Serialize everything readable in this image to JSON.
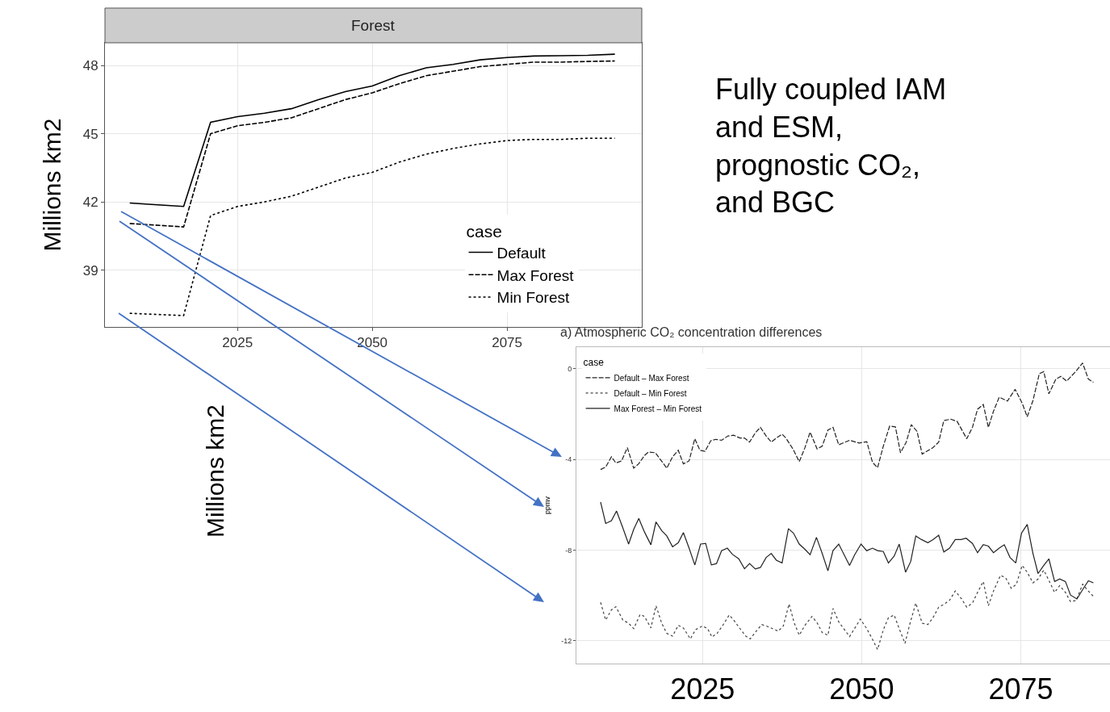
{
  "chart_data": [
    {
      "type": "line",
      "title": "Forest",
      "ylabel": "Millions km2",
      "legend_title": "case",
      "legend": "bottom right",
      "grid": true,
      "xlim": [
        2000.4,
        2100
      ],
      "xticks": [
        2025,
        2050,
        2075
      ],
      "ylim": [
        36.5,
        49
      ],
      "yticks": [
        39,
        42,
        45,
        48
      ],
      "x": [
        2005,
        2015,
        2020,
        2025,
        2030,
        2035,
        2040,
        2045,
        2050,
        2055,
        2060,
        2065,
        2070,
        2075,
        2080,
        2085,
        2090,
        2095
      ],
      "series": [
        {
          "name": "Default",
          "color": "#000000",
          "line_style": "solid",
          "values": [
            41.95,
            41.8,
            45.5,
            45.75,
            45.9,
            46.1,
            46.5,
            46.85,
            47.1,
            47.55,
            47.9,
            48.05,
            48.25,
            48.35,
            48.42,
            48.43,
            48.45,
            48.5
          ]
        },
        {
          "name": "Max Forest",
          "color": "#000000",
          "line_style": "dashed",
          "values": [
            41.05,
            40.9,
            45.0,
            45.35,
            45.5,
            45.7,
            46.1,
            46.5,
            46.8,
            47.2,
            47.55,
            47.75,
            47.95,
            48.05,
            48.15,
            48.15,
            48.18,
            48.2
          ]
        },
        {
          "name": "Min Forest",
          "color": "#000000",
          "line_style": "dotted",
          "values": [
            37.1,
            37.0,
            41.4,
            41.8,
            42.0,
            42.25,
            42.65,
            43.05,
            43.3,
            43.75,
            44.1,
            44.35,
            44.55,
            44.7,
            44.75,
            44.75,
            44.8,
            44.8
          ]
        }
      ],
      "annotations": [
        "Fully coupled IAM and ESM, prognostic CO₂, and BGC"
      ]
    },
    {
      "type": "line",
      "title": "a) Atmospheric CO₂ concentration differences",
      "ylabel": "ppmv",
      "legend_title": "case",
      "legend": "top left",
      "grid": true,
      "xlim": [
        2005.2,
        2089
      ],
      "xticks": [
        2025,
        2050,
        2075
      ],
      "ylim": [
        -13.0,
        0.96
      ],
      "yticks": [
        0,
        -4,
        -8,
        -12
      ],
      "series": [
        {
          "name": "Default – Max Forest",
          "color": "#222222",
          "line_style": "dashed",
          "x": [
            2009.0,
            2009.8,
            2010.7,
            2011.4,
            2012.3,
            2013.2,
            2014.2,
            2015.0,
            2015.9,
            2016.5,
            2017.6,
            2018.4,
            2019.4,
            2020.3,
            2021.2,
            2022.0,
            2022.9,
            2023.8,
            2024.6,
            2025.4,
            2026.3,
            2027.1,
            2028.0,
            2029.0,
            2029.9,
            2030.9,
            2031.6,
            2032.4,
            2033.3,
            2034.1,
            2035.0,
            2035.8,
            2036.6,
            2037.5,
            2038.1,
            2039.2,
            2040.2,
            2041.1,
            2041.9,
            2043.0,
            2043.8,
            2044.7,
            2045.5,
            2046.4,
            2048.1,
            2049.6,
            2050.8,
            2051.7,
            2052.5,
            2053.4,
            2054.4,
            2055.3,
            2056.1,
            2057.0,
            2057.8,
            2058.7,
            2059.5,
            2061.2,
            2062.1,
            2062.9,
            2064.0,
            2065.0,
            2066.5,
            2067.4,
            2068.2,
            2069.1,
            2069.9,
            2070.7,
            2071.6,
            2072.9,
            2074.1,
            2075.2,
            2076.0,
            2076.9,
            2077.9,
            2078.6,
            2079.4,
            2080.5,
            2081.3,
            2082.2,
            2083.7,
            2084.7,
            2085.6,
            2086.4
          ],
          "values": [
            -4.44,
            -4.33,
            -3.88,
            -4.15,
            -4.06,
            -3.47,
            -4.38,
            -4.18,
            -3.82,
            -3.67,
            -3.7,
            -4.0,
            -4.38,
            -3.88,
            -3.59,
            -4.19,
            -4.06,
            -3.08,
            -3.59,
            -3.64,
            -3.17,
            -3.11,
            -3.15,
            -2.96,
            -2.93,
            -3.05,
            -3.05,
            -3.23,
            -2.82,
            -2.58,
            -2.96,
            -3.23,
            -3.05,
            -2.88,
            -3.05,
            -3.53,
            -4.09,
            -3.47,
            -2.79,
            -3.53,
            -3.41,
            -2.7,
            -2.58,
            -3.35,
            -3.15,
            -3.27,
            -3.21,
            -4.12,
            -4.36,
            -3.41,
            -2.52,
            -2.56,
            -3.7,
            -3.23,
            -2.46,
            -2.76,
            -3.76,
            -3.47,
            -3.23,
            -2.28,
            -2.22,
            -2.32,
            -3.08,
            -2.58,
            -1.78,
            -1.57,
            -2.58,
            -1.87,
            -1.25,
            -1.42,
            -0.9,
            -1.51,
            -2.11,
            -1.4,
            -0.21,
            -0.12,
            -1.1,
            -0.45,
            -0.33,
            -0.54,
            -0.09,
            0.26,
            -0.45,
            -0.59
          ]
        },
        {
          "name": "Default – Min Forest",
          "color": "#444444",
          "line_style": "dotted",
          "x": [
            2009.0,
            2009.8,
            2010.7,
            2011.4,
            2012.5,
            2013.4,
            2014.2,
            2015.2,
            2015.9,
            2016.9,
            2017.7,
            2018.6,
            2019.4,
            2020.3,
            2021.2,
            2022.0,
            2023.1,
            2023.9,
            2025.0,
            2025.8,
            2026.5,
            2027.3,
            2028.2,
            2029.2,
            2029.9,
            2030.9,
            2031.8,
            2032.5,
            2033.5,
            2034.3,
            2035.2,
            2036.0,
            2036.9,
            2037.7,
            2038.6,
            2039.4,
            2040.2,
            2041.1,
            2042.2,
            2043.0,
            2043.8,
            2044.7,
            2045.5,
            2046.4,
            2048.1,
            2049.8,
            2050.8,
            2051.7,
            2052.5,
            2053.4,
            2054.2,
            2055.1,
            2055.9,
            2056.8,
            2057.6,
            2058.5,
            2059.5,
            2060.4,
            2061.2,
            2062.1,
            2062.9,
            2063.8,
            2064.7,
            2065.7,
            2066.5,
            2067.4,
            2068.2,
            2069.1,
            2069.9,
            2070.7,
            2071.8,
            2072.6,
            2073.5,
            2074.3,
            2075.2,
            2076.0,
            2076.9,
            2077.7,
            2078.6,
            2079.4,
            2080.3,
            2081.1,
            2082.0,
            2082.8,
            2083.7,
            2084.7,
            2085.6,
            2086.4
          ],
          "values": [
            -10.3,
            -11.08,
            -10.63,
            -10.49,
            -11.08,
            -11.22,
            -11.46,
            -10.84,
            -10.92,
            -11.43,
            -10.45,
            -11.22,
            -11.67,
            -11.79,
            -11.31,
            -11.43,
            -11.91,
            -11.51,
            -11.34,
            -11.46,
            -11.83,
            -11.67,
            -11.31,
            -10.86,
            -11.08,
            -11.46,
            -11.79,
            -11.91,
            -11.55,
            -11.28,
            -11.36,
            -11.46,
            -11.57,
            -11.34,
            -10.37,
            -11.2,
            -11.75,
            -11.31,
            -10.92,
            -11.2,
            -11.63,
            -11.75,
            -10.57,
            -11.16,
            -11.81,
            -11.04,
            -11.46,
            -11.93,
            -12.38,
            -11.51,
            -10.98,
            -10.86,
            -11.46,
            -12.11,
            -11.22,
            -10.33,
            -11.22,
            -11.28,
            -10.98,
            -10.51,
            -10.39,
            -10.21,
            -9.8,
            -10.15,
            -10.51,
            -10.33,
            -9.86,
            -9.38,
            -10.45,
            -9.8,
            -9.11,
            -9.21,
            -9.68,
            -9.5,
            -8.67,
            -8.97,
            -9.44,
            -9.27,
            -8.88,
            -9.33,
            -9.86,
            -9.56,
            -9.86,
            -10.27,
            -10.21,
            -9.5,
            -9.8,
            -10.04
          ]
        },
        {
          "name": "Max Forest – Min Forest",
          "color": "#222222",
          "line_style": "solid",
          "x": [
            2009.0,
            2009.8,
            2010.7,
            2011.5,
            2012.5,
            2013.4,
            2014.2,
            2015.0,
            2015.9,
            2016.9,
            2017.7,
            2018.6,
            2019.4,
            2020.3,
            2021.2,
            2022.0,
            2022.9,
            2023.8,
            2024.7,
            2025.5,
            2026.4,
            2027.2,
            2028.0,
            2028.9,
            2029.7,
            2030.7,
            2031.6,
            2032.4,
            2033.3,
            2034.1,
            2035.0,
            2035.8,
            2036.6,
            2037.5,
            2038.5,
            2039.3,
            2040.2,
            2041.1,
            2041.9,
            2042.9,
            2043.8,
            2044.7,
            2045.5,
            2046.4,
            2048.1,
            2048.9,
            2049.9,
            2050.8,
            2051.7,
            2052.5,
            2053.4,
            2054.2,
            2055.1,
            2055.9,
            2056.9,
            2057.7,
            2058.5,
            2059.4,
            2060.4,
            2061.2,
            2062.1,
            2062.9,
            2063.8,
            2064.7,
            2065.6,
            2066.4,
            2067.4,
            2068.2,
            2069.1,
            2069.9,
            2070.7,
            2071.6,
            2072.4,
            2073.3,
            2074.2,
            2075.1,
            2076.0,
            2076.9,
            2077.7,
            2078.6,
            2079.4,
            2080.3,
            2081.1,
            2082.0,
            2082.8,
            2083.8,
            2084.7,
            2085.6,
            2086.4
          ],
          "values": [
            -5.87,
            -6.82,
            -6.7,
            -6.27,
            -7.02,
            -7.73,
            -7.08,
            -6.6,
            -7.2,
            -7.76,
            -6.75,
            -7.14,
            -7.37,
            -7.85,
            -7.67,
            -7.22,
            -7.91,
            -8.65,
            -7.73,
            -7.7,
            -8.65,
            -8.59,
            -8.02,
            -7.91,
            -8.18,
            -8.38,
            -8.82,
            -8.59,
            -8.83,
            -8.76,
            -8.32,
            -8.14,
            -8.44,
            -8.56,
            -7.05,
            -7.25,
            -7.73,
            -7.96,
            -8.2,
            -7.43,
            -8.14,
            -8.91,
            -8.02,
            -7.73,
            -8.67,
            -8.2,
            -7.73,
            -8.02,
            -7.91,
            -8.02,
            -8.06,
            -8.56,
            -8.26,
            -7.73,
            -8.97,
            -8.5,
            -7.37,
            -7.53,
            -7.67,
            -7.53,
            -7.34,
            -8.08,
            -7.91,
            -7.53,
            -7.53,
            -7.47,
            -7.7,
            -8.11,
            -7.75,
            -7.82,
            -8.11,
            -7.91,
            -7.76,
            -8.32,
            -8.56,
            -7.25,
            -6.86,
            -8.14,
            -9.03,
            -8.67,
            -8.38,
            -9.38,
            -9.27,
            -9.38,
            -9.98,
            -10.15,
            -9.74,
            -9.35,
            -9.44
          ]
        }
      ],
      "annotations": [
        "Millions km2"
      ]
    }
  ]
}
